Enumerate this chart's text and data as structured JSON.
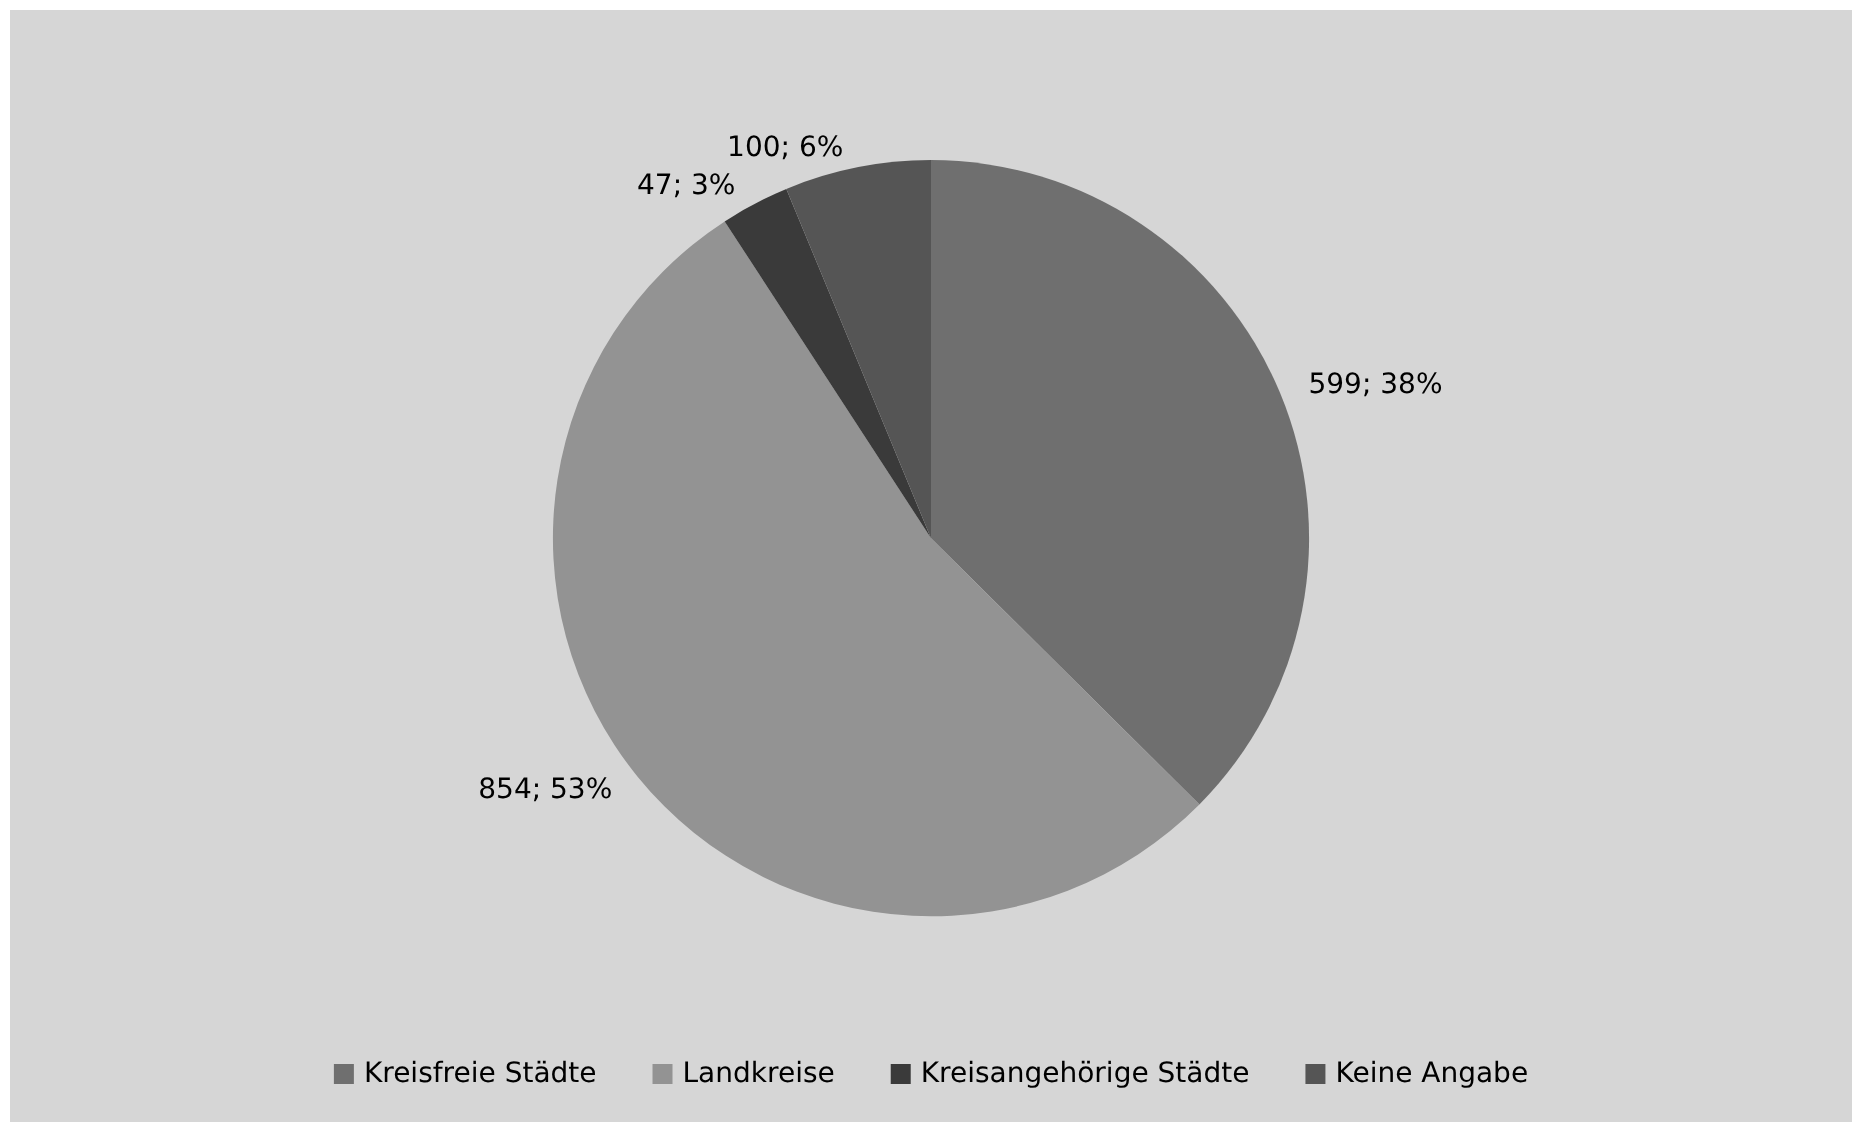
{
  "chart_data": {
    "type": "pie",
    "categories": [
      "Kreisfreie Städte",
      "Landkreise",
      "Kreisangehörige Städte",
      "Keine Angabe"
    ],
    "values": [
      599,
      854,
      47,
      100
    ],
    "colors": [
      "#6f6f6f",
      "#939393",
      "#3a3a3a",
      "#555555"
    ],
    "value_labels": [
      "599; 38%",
      "854; 53%",
      "47; 3%",
      "100; 6%"
    ],
    "legend": "bottom"
  }
}
